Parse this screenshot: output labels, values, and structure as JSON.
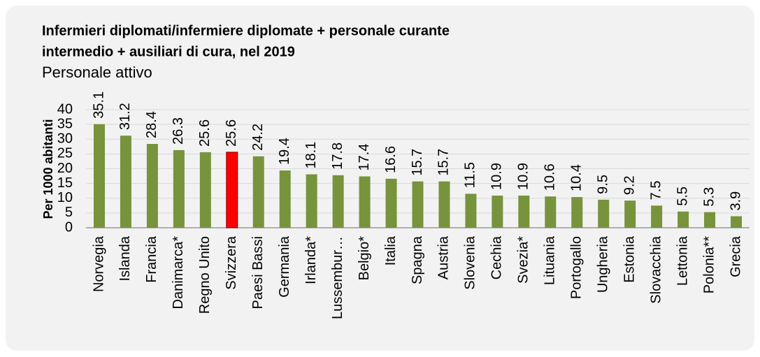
{
  "chart_data": {
    "type": "bar",
    "title": [
      "Infermieri diplomati/infermiere diplomate + personale curante",
      "intermedio + ausiliari di cura, nel 2019"
    ],
    "subtitle": "Personale attivo",
    "y_label": "Per 1000 abitanti",
    "categories": [
      "Norvegia",
      "Islanda",
      "Francia",
      "Danimarca*",
      "Regno Unito",
      "Svizzera",
      "Paesi Bassi",
      "Germania",
      "Irlanda*",
      "Lussembur…",
      "Belgio*",
      "Italia",
      "Spagna",
      "Austria",
      "Slovenia",
      "Cechia",
      "Svezia*",
      "Lituania",
      "Portogallo",
      "Ungheria",
      "Estonia",
      "Slovacchia",
      "Lettonia",
      "Polonia**",
      "Grecia"
    ],
    "values": [
      35.1,
      31.2,
      28.4,
      26.3,
      25.6,
      25.6,
      24.2,
      19.4,
      18.1,
      17.8,
      17.4,
      16.6,
      15.7,
      15.7,
      11.5,
      10.9,
      10.9,
      10.6,
      10.4,
      9.5,
      9.2,
      7.5,
      5.5,
      5.3,
      3.9
    ],
    "colors": [
      "#77933c",
      "#77933c",
      "#77933c",
      "#77933c",
      "#77933c",
      "#ff0000",
      "#77933c",
      "#77933c",
      "#77933c",
      "#77933c",
      "#77933c",
      "#77933c",
      "#77933c",
      "#77933c",
      "#77933c",
      "#77933c",
      "#77933c",
      "#77933c",
      "#77933c",
      "#77933c",
      "#77933c",
      "#77933c",
      "#77933c",
      "#77933c",
      "#77933c"
    ],
    "ylim": [
      0,
      40
    ],
    "yticks": [
      0,
      5,
      10,
      15,
      20,
      25,
      30,
      35,
      40
    ],
    "grid": true
  }
}
